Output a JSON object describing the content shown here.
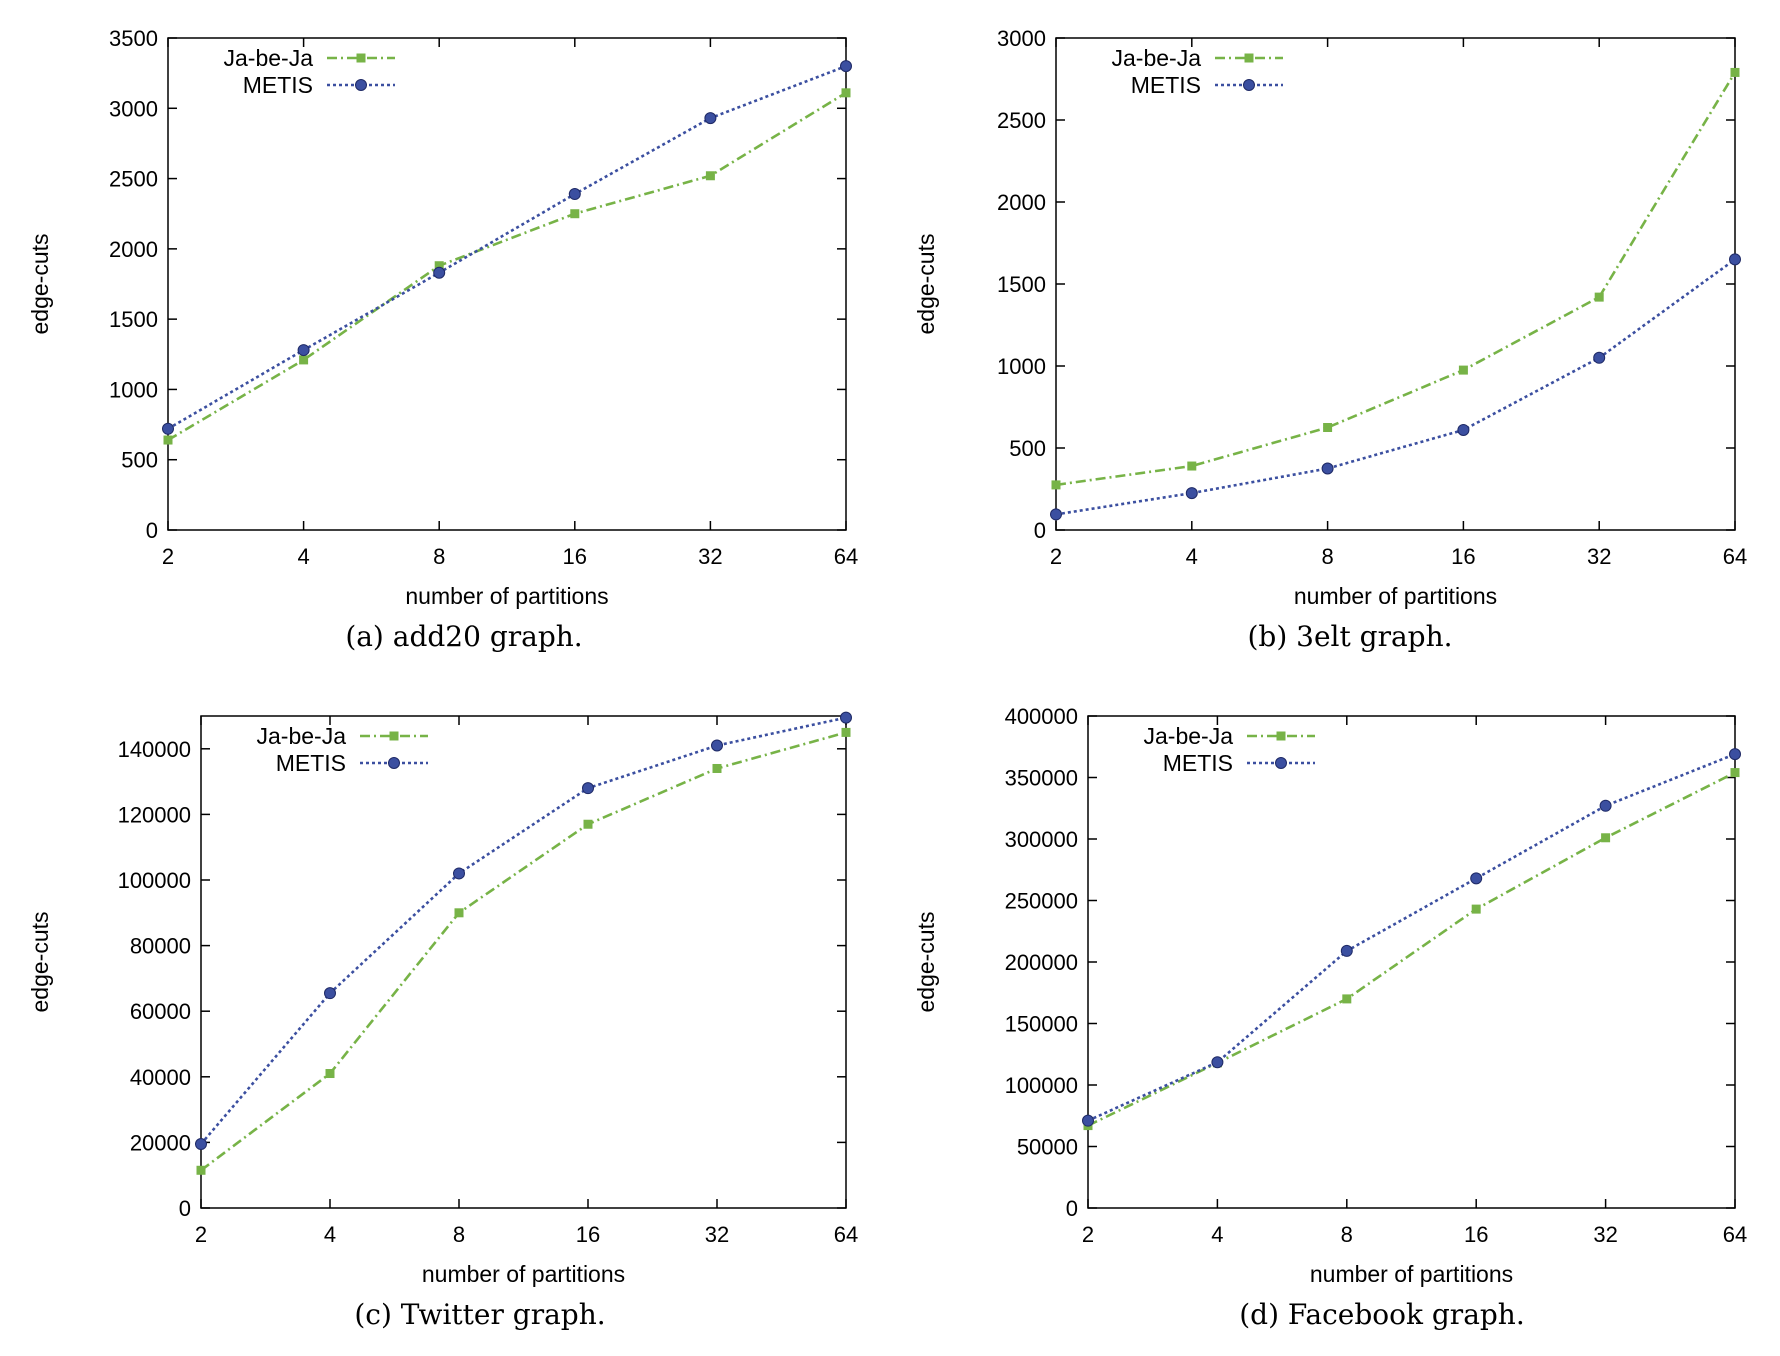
{
  "figure": {
    "colors": {
      "ja_be_ja": "#77b347",
      "metis": "#3b4fa0"
    }
  },
  "chart_data": [
    {
      "id": "a",
      "type": "line",
      "caption": "(a)  add20 graph.",
      "xlabel": "number of partitions",
      "ylabel": "edge-cuts",
      "x_scale": "log2",
      "x": [
        2,
        4,
        8,
        16,
        32,
        64
      ],
      "x_tick_labels": [
        "2",
        "4",
        "8",
        "16",
        "32",
        "64"
      ],
      "ylim": [
        0,
        3500
      ],
      "y_ticks": [
        0,
        500,
        1000,
        1500,
        2000,
        2500,
        3000,
        3500
      ],
      "y_tick_labels": [
        "0",
        "500",
        "1000",
        "1500",
        "2000",
        "2500",
        "3000",
        "3500"
      ],
      "grid": false,
      "legend_position": "top-left",
      "series": [
        {
          "name": "Ja-be-Ja",
          "marker": "square",
          "values": [
            640,
            1210,
            1880,
            2250,
            2520,
            3110
          ]
        },
        {
          "name": "METIS",
          "marker": "circle",
          "values": [
            720,
            1280,
            1830,
            2390,
            2930,
            3300
          ]
        }
      ]
    },
    {
      "id": "b",
      "type": "line",
      "caption": "(b)  3elt graph.",
      "xlabel": "number of partitions",
      "ylabel": "edge-cuts",
      "x_scale": "log2",
      "x": [
        2,
        4,
        8,
        16,
        32,
        64
      ],
      "x_tick_labels": [
        "2",
        "4",
        "8",
        "16",
        "32",
        "64"
      ],
      "ylim": [
        0,
        3000
      ],
      "y_ticks": [
        0,
        500,
        1000,
        1500,
        2000,
        2500,
        3000
      ],
      "y_tick_labels": [
        "0",
        "500",
        "1000",
        "1500",
        "2000",
        "2500",
        "3000"
      ],
      "grid": false,
      "legend_position": "top-left",
      "series": [
        {
          "name": "Ja-be-Ja",
          "marker": "square",
          "values": [
            275,
            390,
            625,
            975,
            1420,
            2790
          ]
        },
        {
          "name": "METIS",
          "marker": "circle",
          "values": [
            95,
            225,
            375,
            610,
            1050,
            1650
          ]
        }
      ]
    },
    {
      "id": "c",
      "type": "line",
      "caption": "(c)  Twitter graph.",
      "xlabel": "number of partitions",
      "ylabel": "edge-cuts",
      "x_scale": "log2",
      "x": [
        2,
        4,
        8,
        16,
        32,
        64
      ],
      "x_tick_labels": [
        "2",
        "4",
        "8",
        "16",
        "32",
        "64"
      ],
      "ylim": [
        0,
        150000
      ],
      "y_ticks": [
        0,
        20000,
        40000,
        60000,
        80000,
        100000,
        120000,
        140000
      ],
      "y_tick_labels": [
        "0",
        "20000",
        "40000",
        "60000",
        "80000",
        "100000",
        "120000",
        "140000"
      ],
      "grid": false,
      "legend_position": "top-left",
      "series": [
        {
          "name": "Ja-be-Ja",
          "marker": "square",
          "values": [
            11500,
            41000,
            90000,
            117000,
            134000,
            145000
          ]
        },
        {
          "name": "METIS",
          "marker": "circle",
          "values": [
            19500,
            65500,
            102000,
            128000,
            141000,
            149500
          ]
        }
      ]
    },
    {
      "id": "d",
      "type": "line",
      "caption": "(d)  Facebook graph.",
      "xlabel": "number of partitions",
      "ylabel": "edge-cuts",
      "x_scale": "log2",
      "x": [
        2,
        4,
        8,
        16,
        32,
        64
      ],
      "x_tick_labels": [
        "2",
        "4",
        "8",
        "16",
        "32",
        "64"
      ],
      "ylim": [
        0,
        400000
      ],
      "y_ticks": [
        0,
        50000,
        100000,
        150000,
        200000,
        250000,
        300000,
        350000,
        400000
      ],
      "y_tick_labels": [
        "0",
        "50000",
        "100000",
        "150000",
        "200000",
        "250000",
        "300000",
        "350000",
        "400000"
      ],
      "grid": false,
      "legend_position": "top-left",
      "series": [
        {
          "name": "Ja-be-Ja",
          "marker": "square",
          "values": [
            67000,
            118000,
            170000,
            243000,
            301000,
            354000
          ]
        },
        {
          "name": "METIS",
          "marker": "circle",
          "values": [
            71000,
            118500,
            209000,
            268000,
            327000,
            369000
          ]
        }
      ]
    }
  ]
}
